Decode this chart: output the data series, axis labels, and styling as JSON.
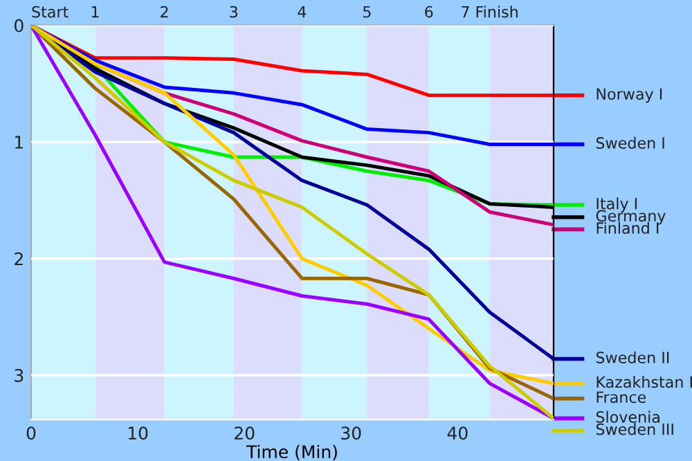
{
  "chart_data": {
    "type": "line",
    "xlabel": "Time (Min)",
    "x": [
      0,
      6.0,
      12.5,
      19.0,
      25.4,
      31.5,
      37.3,
      43.0,
      49.0
    ],
    "xlim": [
      0,
      49
    ],
    "xticks": [
      0,
      10,
      20,
      30,
      40
    ],
    "ylim": [
      3.38,
      0
    ],
    "yticks": [
      0,
      1,
      2,
      3
    ],
    "grid": "y",
    "legend": "right",
    "marker": "none",
    "line_style": "solid",
    "bands": [
      {
        "axis": "x",
        "from": 0,
        "to": 6.0,
        "color": "#ccf5ff",
        "label": "Start"
      },
      {
        "axis": "x",
        "from": 6.0,
        "to": 12.5,
        "color": "#dcdcfc",
        "label": "1"
      },
      {
        "axis": "x",
        "from": 12.5,
        "to": 19.0,
        "color": "#ccf5ff",
        "label": "2"
      },
      {
        "axis": "x",
        "from": 19.0,
        "to": 25.4,
        "color": "#dcdcfc",
        "label": "3"
      },
      {
        "axis": "x",
        "from": 25.4,
        "to": 31.5,
        "color": "#ccf5ff",
        "label": "4"
      },
      {
        "axis": "x",
        "from": 31.5,
        "to": 37.3,
        "color": "#dcdcfc",
        "label": "5"
      },
      {
        "axis": "x",
        "from": 37.3,
        "to": 43.0,
        "color": "#ccf5ff",
        "label": "6"
      },
      {
        "axis": "x",
        "from": 43.0,
        "to": 49.0,
        "color": "#dcdcfc",
        "label": "7 Finish"
      }
    ],
    "series": [
      {
        "name": "Norway I",
        "color": "#ff0000",
        "values": [
          0,
          0.28,
          0.28,
          0.29,
          0.39,
          0.42,
          0.6,
          0.6,
          0.6
        ]
      },
      {
        "name": "Sweden I",
        "color": "#0000ff",
        "values": [
          0,
          0.3,
          0.53,
          0.58,
          0.68,
          0.89,
          0.92,
          1.02,
          1.02
        ]
      },
      {
        "name": "Italy I",
        "color": "#00ee00",
        "values": [
          0,
          0.35,
          1.0,
          1.13,
          1.13,
          1.25,
          1.33,
          1.53,
          1.54
        ]
      },
      {
        "name": "Germany",
        "color": "#000000",
        "values": [
          0,
          0.37,
          0.67,
          0.88,
          1.13,
          1.2,
          1.29,
          1.53,
          1.56
        ]
      },
      {
        "name": "Finland I",
        "color": "#cc0077",
        "values": [
          0,
          0.33,
          0.58,
          0.76,
          0.99,
          1.13,
          1.25,
          1.6,
          1.71
        ]
      },
      {
        "name": "Sweden II",
        "color": "#000099",
        "values": [
          0,
          0.4,
          0.67,
          0.92,
          1.33,
          1.54,
          1.92,
          2.46,
          2.86
        ]
      },
      {
        "name": "Kazakhstan I",
        "color": "#ffcc00",
        "values": [
          0,
          0.33,
          0.58,
          1.11,
          2.0,
          2.23,
          2.6,
          2.96,
          3.07
        ]
      },
      {
        "name": "France",
        "color": "#996600",
        "values": [
          0,
          0.54,
          1.0,
          1.49,
          2.17,
          2.17,
          2.31,
          2.94,
          3.2
        ]
      },
      {
        "name": "Slovenia",
        "color": "#9900ff",
        "values": [
          0,
          0.94,
          2.03,
          2.17,
          2.32,
          2.39,
          2.52,
          3.07,
          3.37
        ]
      },
      {
        "name": "Sweden III",
        "color": "#cccc00",
        "values": [
          0,
          0.45,
          1.0,
          1.33,
          1.56,
          1.96,
          2.31,
          2.92,
          3.37
        ]
      }
    ]
  }
}
